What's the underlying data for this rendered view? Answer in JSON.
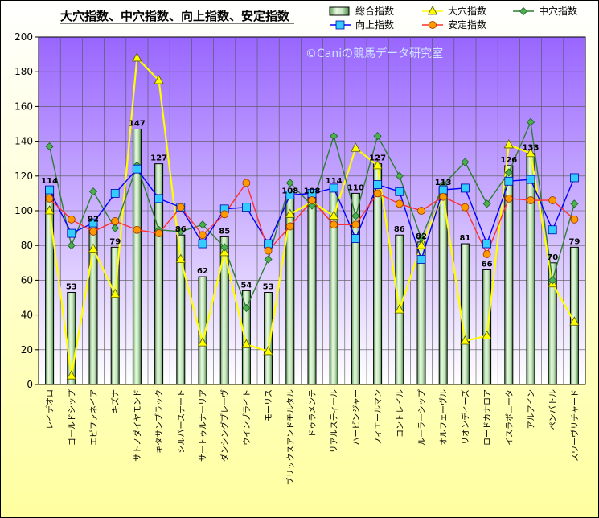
{
  "chart_data": {
    "type": "bar",
    "title": "大穴指数、中穴指数、向上指数、安定指数",
    "watermark": "©Caniの競馬データ研究室",
    "ylim": [
      0,
      200
    ],
    "yticks": [
      0,
      20,
      40,
      60,
      80,
      100,
      120,
      140,
      160,
      180,
      200
    ],
    "grid": true,
    "legend_position": "top",
    "categories": [
      "レイデオロ",
      "ゴールドシップ",
      "エピファネイア",
      "キズナ",
      "サトノダイヤモンド",
      "キタサンブラック",
      "シルバーステート",
      "サートゥルナーリア",
      "ダンシングブレーヴ",
      "ウインブライト",
      "モーリス",
      "ブリックスアンドモルタル",
      "ドゥラメンテ",
      "リアルスティール",
      "ハービンジャー",
      "フィエールマン",
      "コントレイル",
      "ルーラーシップ",
      "オルフェーヴル",
      "リオンディーズ",
      "ロードカナロア",
      "イスラボニータ",
      "アルアイン",
      "ペンバトル",
      "スワーヴリチャード"
    ],
    "series": [
      {
        "name": "総合指数",
        "type": "bar",
        "color": "#c8e6c0",
        "values": [
          114,
          53,
          92,
          79,
          147,
          127,
          86,
          62,
          85,
          54,
          53,
          108,
          108,
          114,
          110,
          127,
          86,
          82,
          113,
          81,
          66,
          126,
          133,
          70,
          79
        ]
      },
      {
        "name": "大穴指数",
        "type": "line",
        "color": "#ffff00",
        "marker": "triangle",
        "values": [
          100,
          5,
          78,
          52,
          188,
          175,
          72,
          24,
          76,
          23,
          19,
          98,
          105,
          97,
          136,
          126,
          43,
          80,
          109,
          25,
          28,
          138,
          133,
          58,
          36
        ]
      },
      {
        "name": "中穴指数",
        "type": "line",
        "color": "#2e7d32",
        "marker": "diamond",
        "values": [
          137,
          80,
          111,
          90,
          126,
          89,
          88,
          92,
          79,
          44,
          72,
          116,
          103,
          143,
          97,
          143,
          120,
          84,
          115,
          128,
          104,
          122,
          151,
          60,
          104
        ]
      },
      {
        "name": "向上指数",
        "type": "line",
        "color": "#0000ff",
        "marker": "square",
        "values": [
          112,
          87,
          93,
          110,
          124,
          107,
          102,
          81,
          101,
          102,
          81,
          109,
          110,
          113,
          84,
          115,
          111,
          72,
          112,
          113,
          81,
          117,
          118,
          89,
          119
        ]
      },
      {
        "name": "安定指数",
        "type": "line",
        "color": "#ff3030",
        "marker": "circle",
        "values": [
          107,
          95,
          88,
          94,
          89,
          87,
          102,
          86,
          98,
          116,
          77,
          91,
          106,
          92,
          92,
          110,
          104,
          100,
          108,
          102,
          75,
          107,
          106,
          106,
          95
        ]
      }
    ]
  }
}
